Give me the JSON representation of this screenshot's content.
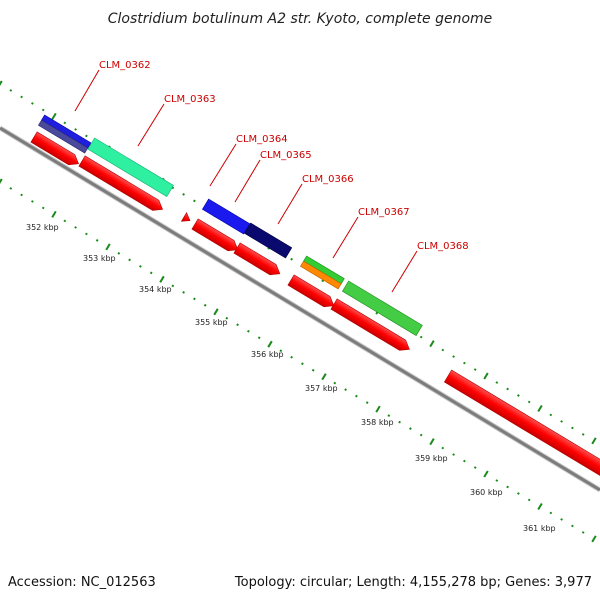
{
  "title": "Clostridium botulinum A2 str. Kyoto, complete genome",
  "accession": "Accession: NC_012563",
  "summary": "Topology: circular; Length: 4,155,278 bp; Genes: 3,977",
  "gene_labels": [
    "CLM_0362",
    "CLM_0363",
    "CLM_0364",
    "CLM_0365",
    "CLM_0366",
    "CLM_0367",
    "CLM_0368"
  ],
  "kbp_labels": [
    "352 kbp",
    "353 kbp",
    "354 kbp",
    "355 kbp",
    "356 kbp",
    "357 kbp",
    "358 kbp",
    "359 kbp",
    "360 kbp",
    "361 kbp"
  ],
  "colors": {
    "backbone": "#8a8a8a",
    "cds": "#ff0000",
    "tick": "#1a8a1a",
    "label": "#cc0000"
  }
}
